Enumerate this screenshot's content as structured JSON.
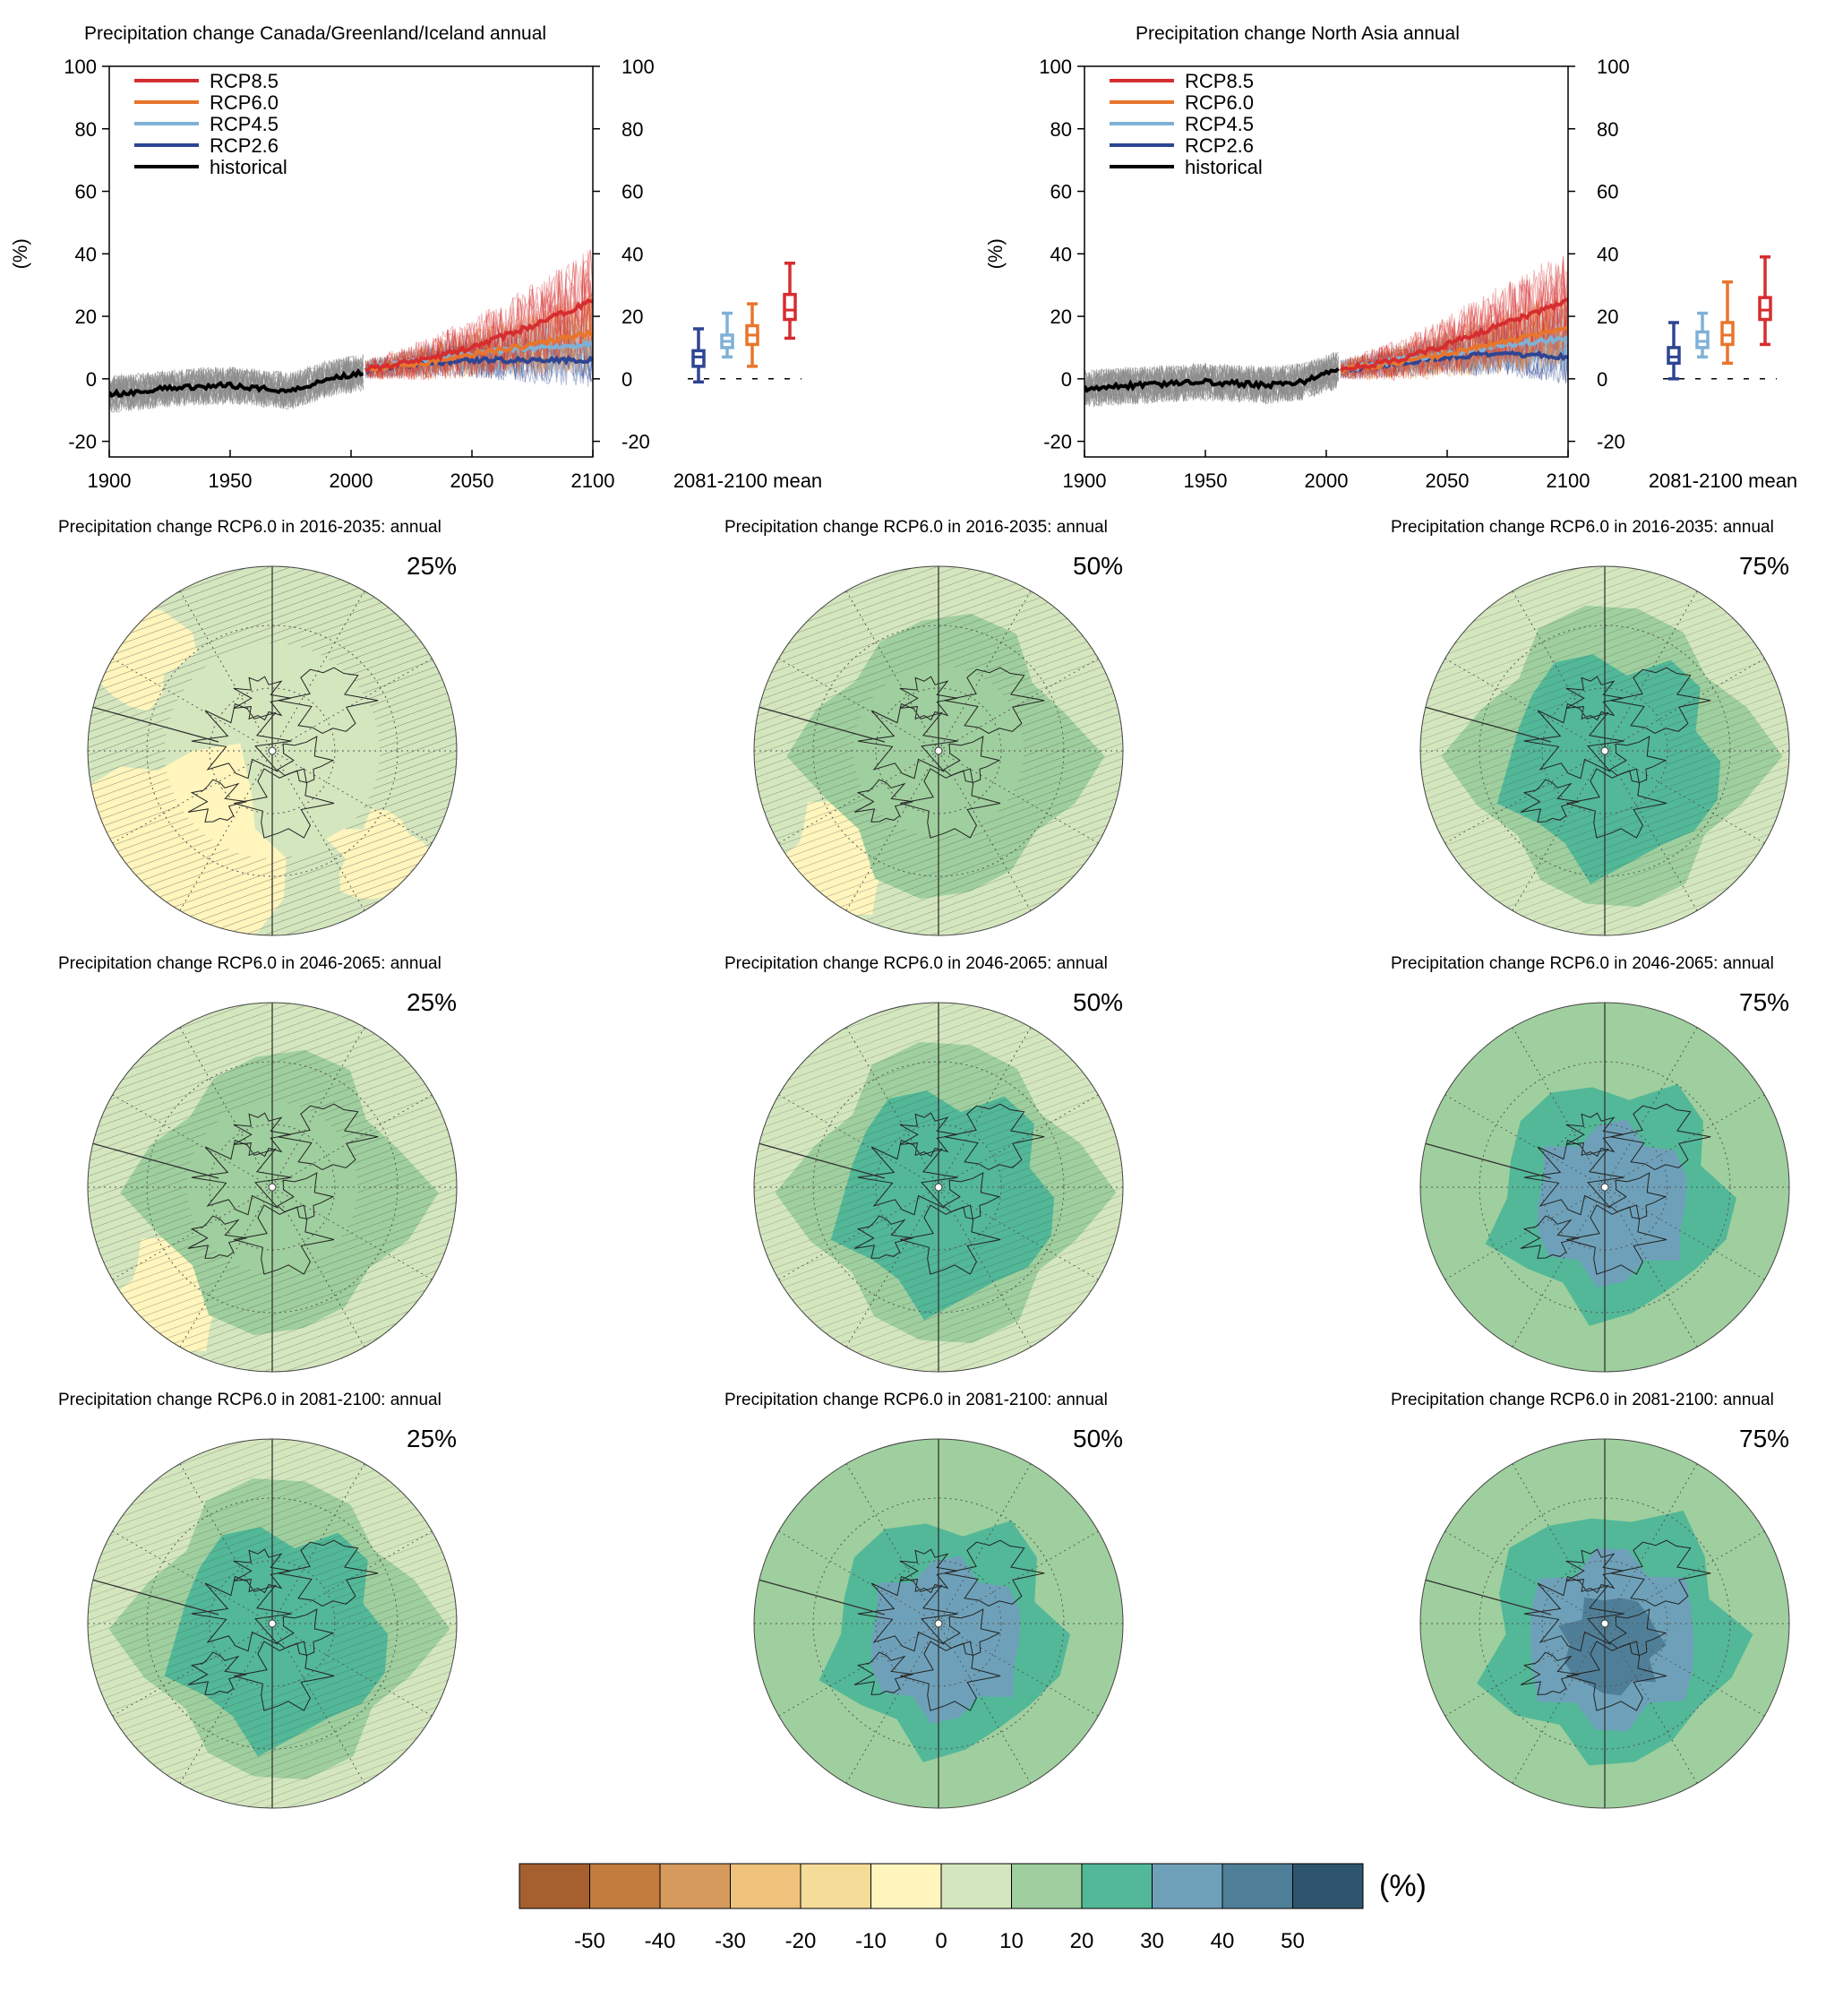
{
  "colors": {
    "rcp85": "#d62d2f",
    "rcp60": "#e8752c",
    "rcp45": "#7fb1d7",
    "rcp26": "#2e4593",
    "historical": "#000000",
    "ensemble_hist": "#8c8c8c"
  },
  "chart_data": [
    {
      "type": "line",
      "title": "Precipitation change Canada/Greenland/Iceland annual",
      "ylabel": "(%)",
      "xlim": [
        1900,
        2100
      ],
      "ylim": [
        -25,
        100
      ],
      "xticks": [
        1900,
        1950,
        2000,
        2050,
        2100
      ],
      "yticks": [
        -20,
        0,
        20,
        40,
        60,
        80,
        100
      ],
      "legend": [
        "RCP8.5",
        "RCP6.0",
        "RCP4.5",
        "RCP2.6",
        "historical"
      ],
      "legend_position": "top-left",
      "series": [
        {
          "name": "historical",
          "x": [
            1900,
            1925,
            1950,
            1975,
            1990,
            2005
          ],
          "y": [
            -5,
            -3,
            -2,
            -4,
            0,
            2
          ]
        },
        {
          "name": "RCP2.6",
          "x": [
            2006,
            2030,
            2050,
            2075,
            2100
          ],
          "y": [
            3,
            5,
            6,
            6,
            6
          ]
        },
        {
          "name": "RCP4.5",
          "x": [
            2006,
            2030,
            2050,
            2075,
            2100
          ],
          "y": [
            3,
            6,
            8,
            10,
            11
          ]
        },
        {
          "name": "RCP6.0",
          "x": [
            2006,
            2030,
            2050,
            2075,
            2100
          ],
          "y": [
            3,
            5,
            8,
            11,
            15
          ]
        },
        {
          "name": "RCP8.5",
          "x": [
            2006,
            2030,
            2050,
            2075,
            2100
          ],
          "y": [
            3,
            6,
            10,
            17,
            25
          ]
        }
      ],
      "box_label": "2081-2100 mean",
      "boxes": [
        {
          "name": "RCP2.6",
          "min": -1,
          "q1": 4,
          "median": 7,
          "q3": 9,
          "max": 16
        },
        {
          "name": "RCP4.5",
          "min": 7,
          "q1": 10,
          "median": 12,
          "q3": 14,
          "max": 21
        },
        {
          "name": "RCP6.0",
          "min": 4,
          "q1": 11,
          "median": 14,
          "q3": 17,
          "max": 24
        },
        {
          "name": "RCP8.5",
          "min": 13,
          "q1": 19,
          "median": 22,
          "q3": 27,
          "max": 37
        }
      ]
    },
    {
      "type": "line",
      "title": "Precipitation change North Asia annual",
      "ylabel": "(%)",
      "xlim": [
        1900,
        2100
      ],
      "ylim": [
        -25,
        100
      ],
      "xticks": [
        1900,
        1950,
        2000,
        2050,
        2100
      ],
      "yticks": [
        -20,
        0,
        20,
        40,
        60,
        80,
        100
      ],
      "legend": [
        "RCP8.5",
        "RCP6.0",
        "RCP4.5",
        "RCP2.6",
        "historical"
      ],
      "legend_position": "top-left",
      "series": [
        {
          "name": "historical",
          "x": [
            1900,
            1925,
            1950,
            1975,
            1990,
            2005
          ],
          "y": [
            -3,
            -2,
            -1,
            -2,
            -1,
            3
          ]
        },
        {
          "name": "RCP2.6",
          "x": [
            2006,
            2030,
            2050,
            2075,
            2100
          ],
          "y": [
            3,
            5,
            7,
            8,
            7
          ]
        },
        {
          "name": "RCP4.5",
          "x": [
            2006,
            2030,
            2050,
            2075,
            2100
          ],
          "y": [
            3,
            6,
            8,
            11,
            13
          ]
        },
        {
          "name": "RCP6.0",
          "x": [
            2006,
            2030,
            2050,
            2075,
            2100
          ],
          "y": [
            3,
            5,
            8,
            12,
            16
          ]
        },
        {
          "name": "RCP8.5",
          "x": [
            2006,
            2030,
            2050,
            2075,
            2100
          ],
          "y": [
            3,
            6,
            11,
            18,
            25
          ]
        }
      ],
      "box_label": "2081-2100 mean",
      "boxes": [
        {
          "name": "RCP2.6",
          "min": 0,
          "q1": 5,
          "median": 7,
          "q3": 10,
          "max": 18
        },
        {
          "name": "RCP4.5",
          "min": 7,
          "q1": 10,
          "median": 12,
          "q3": 15,
          "max": 21
        },
        {
          "name": "RCP6.0",
          "min": 5,
          "q1": 11,
          "median": 14,
          "q3": 18,
          "max": 31
        },
        {
          "name": "RCP8.5",
          "min": 11,
          "q1": 19,
          "median": 22,
          "q3": 26,
          "max": 39
        }
      ]
    },
    {
      "type": "heatmap",
      "panels": [
        {
          "title": "Precipitation change RCP6.0 in 2016-2035: annual",
          "percentile": "25%",
          "level": 0
        },
        {
          "title": "Precipitation change RCP6.0 in 2016-2035: annual",
          "percentile": "50%",
          "level": 1
        },
        {
          "title": "Precipitation change RCP6.0 in 2016-2035: annual",
          "percentile": "75%",
          "level": 2
        },
        {
          "title": "Precipitation change RCP6.0 in 2046-2065: annual",
          "percentile": "25%",
          "level": 1
        },
        {
          "title": "Precipitation change RCP6.0 in 2046-2065: annual",
          "percentile": "50%",
          "level": 2
        },
        {
          "title": "Precipitation change RCP6.0 in 2046-2065: annual",
          "percentile": "75%",
          "level": 3
        },
        {
          "title": "Precipitation change RCP6.0 in 2081-2100: annual",
          "percentile": "25%",
          "level": 2
        },
        {
          "title": "Precipitation change RCP6.0 in 2081-2100: annual",
          "percentile": "50%",
          "level": 3
        },
        {
          "title": "Precipitation change RCP6.0 in 2081-2100: annual",
          "percentile": "75%",
          "level": 4
        }
      ],
      "colorbar": {
        "unit": "(%)",
        "ticks": [
          "-50",
          "-40",
          "-30",
          "-20",
          "-10",
          "0",
          "10",
          "20",
          "30",
          "40",
          "50"
        ],
        "colors": [
          "#a65f2e",
          "#c17c3e",
          "#d69a5c",
          "#eec27b",
          "#f5dc98",
          "#fff5bd",
          "#d4e6be",
          "#9fcf9e",
          "#52b898",
          "#6ea1b9",
          "#4f7f98",
          "#2e556d"
        ]
      }
    }
  ]
}
